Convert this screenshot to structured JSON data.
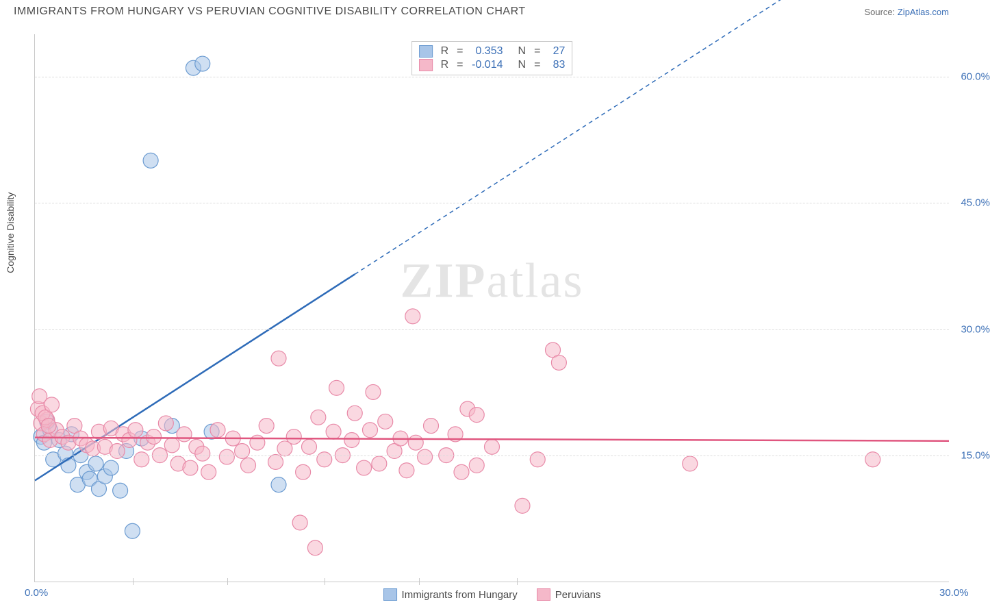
{
  "header": {
    "title": "IMMIGRANTS FROM HUNGARY VS PERUVIAN COGNITIVE DISABILITY CORRELATION CHART",
    "source_prefix": "Source: ",
    "source_link": "ZipAtlas.com"
  },
  "watermark": {
    "part1": "ZIP",
    "part2": "atlas"
  },
  "chart": {
    "type": "scatter",
    "y_axis_label": "Cognitive Disability",
    "background_color": "#ffffff",
    "grid_color": "#dcdcdc",
    "axis_color": "#c8c8c8",
    "xlim": [
      0,
      30
    ],
    "ylim": [
      0,
      65
    ],
    "x_ticks": [
      {
        "v": 0,
        "label": "0.0%"
      },
      {
        "v": 30,
        "label": "30.0%"
      }
    ],
    "x_tick_marks": [
      3.2,
      6.3,
      9.5,
      12.6,
      15.8
    ],
    "y_gridlines": [
      {
        "v": 15,
        "label": "15.0%"
      },
      {
        "v": 30,
        "label": "30.0%"
      },
      {
        "v": 45,
        "label": "45.0%"
      },
      {
        "v": 60,
        "label": "60.0%"
      }
    ],
    "series": [
      {
        "name": "Immigrants from Hungary",
        "fill_color": "#a8c5e8",
        "fill_opacity": 0.55,
        "stroke_color": "#6b9bd1",
        "line_color": "#2e6bb8",
        "marker_radius": 11,
        "R": "0.353",
        "N": "27",
        "points": [
          [
            0.2,
            17.2
          ],
          [
            0.3,
            16.5
          ],
          [
            0.5,
            18.0
          ],
          [
            0.6,
            14.5
          ],
          [
            0.8,
            16.8
          ],
          [
            1.0,
            15.2
          ],
          [
            1.1,
            13.8
          ],
          [
            1.2,
            17.5
          ],
          [
            1.4,
            11.5
          ],
          [
            1.5,
            15.0
          ],
          [
            1.7,
            13.0
          ],
          [
            1.8,
            12.2
          ],
          [
            2.0,
            14.0
          ],
          [
            2.1,
            11.0
          ],
          [
            2.3,
            12.5
          ],
          [
            2.5,
            13.5
          ],
          [
            2.8,
            10.8
          ],
          [
            3.0,
            15.5
          ],
          [
            3.2,
            6.0
          ],
          [
            3.5,
            17.0
          ],
          [
            3.8,
            50.0
          ],
          [
            4.5,
            18.5
          ],
          [
            5.2,
            61.0
          ],
          [
            5.5,
            61.5
          ],
          [
            5.8,
            17.8
          ],
          [
            8.0,
            11.5
          ],
          [
            0.4,
            19.0
          ]
        ],
        "trend": {
          "x1": 0,
          "y1": 12.0,
          "x2": 30,
          "y2": 82.0,
          "solid_until_x": 10.5
        }
      },
      {
        "name": "Peruvians",
        "fill_color": "#f5b8c9",
        "fill_opacity": 0.55,
        "stroke_color": "#e88aa8",
        "line_color": "#e0567f",
        "marker_radius": 11,
        "R": "-0.014",
        "N": "83",
        "points": [
          [
            0.1,
            20.5
          ],
          [
            0.2,
            18.8
          ],
          [
            0.3,
            17.5
          ],
          [
            0.4,
            19.2
          ],
          [
            0.5,
            16.8
          ],
          [
            0.7,
            18.0
          ],
          [
            0.9,
            17.2
          ],
          [
            1.1,
            16.5
          ],
          [
            1.3,
            18.5
          ],
          [
            1.5,
            17.0
          ],
          [
            1.7,
            16.2
          ],
          [
            1.9,
            15.8
          ],
          [
            2.1,
            17.8
          ],
          [
            2.3,
            16.0
          ],
          [
            2.5,
            18.2
          ],
          [
            2.7,
            15.5
          ],
          [
            2.9,
            17.5
          ],
          [
            3.1,
            16.8
          ],
          [
            3.3,
            18.0
          ],
          [
            3.5,
            14.5
          ],
          [
            3.7,
            16.5
          ],
          [
            3.9,
            17.2
          ],
          [
            4.1,
            15.0
          ],
          [
            4.3,
            18.8
          ],
          [
            4.5,
            16.2
          ],
          [
            4.7,
            14.0
          ],
          [
            4.9,
            17.5
          ],
          [
            5.1,
            13.5
          ],
          [
            5.3,
            16.0
          ],
          [
            5.5,
            15.2
          ],
          [
            5.7,
            13.0
          ],
          [
            6.0,
            18.0
          ],
          [
            6.3,
            14.8
          ],
          [
            6.5,
            17.0
          ],
          [
            6.8,
            15.5
          ],
          [
            7.0,
            13.8
          ],
          [
            7.3,
            16.5
          ],
          [
            7.6,
            18.5
          ],
          [
            7.9,
            14.2
          ],
          [
            8.0,
            26.5
          ],
          [
            8.2,
            15.8
          ],
          [
            8.5,
            17.2
          ],
          [
            8.7,
            7.0
          ],
          [
            8.8,
            13.0
          ],
          [
            9.0,
            16.0
          ],
          [
            9.2,
            4.0
          ],
          [
            9.3,
            19.5
          ],
          [
            9.5,
            14.5
          ],
          [
            9.8,
            17.8
          ],
          [
            9.9,
            23.0
          ],
          [
            10.1,
            15.0
          ],
          [
            10.4,
            16.8
          ],
          [
            10.5,
            20.0
          ],
          [
            10.8,
            13.5
          ],
          [
            11.0,
            18.0
          ],
          [
            11.1,
            22.5
          ],
          [
            11.3,
            14.0
          ],
          [
            11.5,
            19.0
          ],
          [
            11.8,
            15.5
          ],
          [
            12.0,
            17.0
          ],
          [
            12.2,
            13.2
          ],
          [
            12.4,
            31.5
          ],
          [
            12.5,
            16.5
          ],
          [
            12.8,
            14.8
          ],
          [
            13.0,
            18.5
          ],
          [
            13.5,
            15.0
          ],
          [
            13.8,
            17.5
          ],
          [
            14.0,
            13.0
          ],
          [
            14.2,
            20.5
          ],
          [
            14.5,
            13.8
          ],
          [
            14.5,
            19.8
          ],
          [
            15.0,
            16.0
          ],
          [
            16.0,
            9.0
          ],
          [
            16.5,
            14.5
          ],
          [
            17.0,
            27.5
          ],
          [
            17.2,
            26.0
          ],
          [
            21.5,
            14.0
          ],
          [
            27.5,
            14.5
          ],
          [
            0.15,
            22.0
          ],
          [
            0.25,
            20.0
          ],
          [
            0.35,
            19.5
          ],
          [
            0.45,
            18.5
          ],
          [
            0.55,
            21.0
          ]
        ],
        "trend": {
          "x1": 0,
          "y1": 17.1,
          "x2": 30,
          "y2": 16.7,
          "solid_until_x": 30
        }
      }
    ],
    "stats_legend": {
      "label_R": "R",
      "label_eq": "=",
      "label_N": "N",
      "value_color": "#3b6fb6"
    }
  }
}
